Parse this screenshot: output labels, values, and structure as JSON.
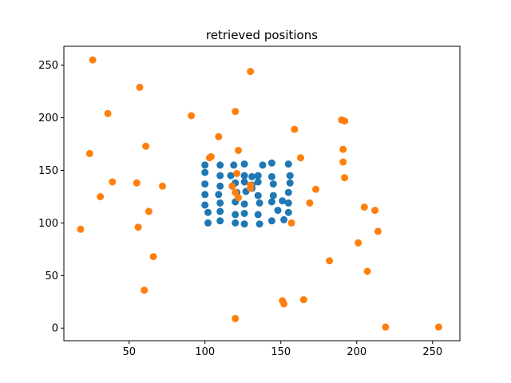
{
  "chart_data": {
    "type": "scatter",
    "title": "retrieved positions",
    "xlabel": "",
    "ylabel": "",
    "xlim": [
      7,
      268
    ],
    "ylim": [
      -12,
      268
    ],
    "xticks": [
      50,
      100,
      150,
      200,
      250
    ],
    "yticks": [
      0,
      50,
      100,
      150,
      200,
      250
    ],
    "grid": false,
    "legend": "none",
    "series": [
      {
        "color": "#1f77b4",
        "points": [
          [
            100,
            155
          ],
          [
            100,
            148
          ],
          [
            100,
            137
          ],
          [
            100,
            127
          ],
          [
            100,
            117
          ],
          [
            102,
            110
          ],
          [
            102,
            100
          ],
          [
            110,
            155
          ],
          [
            110,
            145
          ],
          [
            110,
            135
          ],
          [
            109,
            127
          ],
          [
            110,
            119
          ],
          [
            110,
            111
          ],
          [
            110,
            102
          ],
          [
            117,
            145
          ],
          [
            119,
            155
          ],
          [
            118,
            135
          ],
          [
            121,
            129
          ],
          [
            120,
            138
          ],
          [
            120,
            120
          ],
          [
            120,
            108
          ],
          [
            120,
            100
          ],
          [
            126,
            156
          ],
          [
            126,
            145
          ],
          [
            126,
            139
          ],
          [
            127,
            130
          ],
          [
            126,
            118
          ],
          [
            126,
            109
          ],
          [
            126,
            99
          ],
          [
            131,
            144
          ],
          [
            131,
            136
          ],
          [
            131,
            133
          ],
          [
            135,
            145
          ],
          [
            135,
            139
          ],
          [
            135,
            126
          ],
          [
            136,
            119
          ],
          [
            135,
            108
          ],
          [
            136,
            99
          ],
          [
            138,
            155
          ],
          [
            144,
            157
          ],
          [
            144,
            144
          ],
          [
            145,
            137
          ],
          [
            145,
            126
          ],
          [
            144,
            120
          ],
          [
            144,
            102
          ],
          [
            148,
            112
          ],
          [
            151,
            121
          ],
          [
            152,
            103
          ],
          [
            155,
            156
          ],
          [
            156,
            145
          ],
          [
            156,
            138
          ],
          [
            155,
            129
          ],
          [
            155,
            119
          ],
          [
            155,
            110
          ]
        ]
      },
      {
        "color": "#ff7f0e",
        "points": [
          [
            26,
            255
          ],
          [
            130,
            244
          ],
          [
            57,
            229
          ],
          [
            36,
            204
          ],
          [
            91,
            202
          ],
          [
            120,
            206
          ],
          [
            109,
            182
          ],
          [
            159,
            189
          ],
          [
            190,
            198
          ],
          [
            192,
            197
          ],
          [
            61,
            173
          ],
          [
            24,
            166
          ],
          [
            122,
            169
          ],
          [
            191,
            170
          ],
          [
            103,
            162
          ],
          [
            104,
            163
          ],
          [
            163,
            162
          ],
          [
            191,
            158
          ],
          [
            121,
            147
          ],
          [
            192,
            143
          ],
          [
            39,
            139
          ],
          [
            55,
            138
          ],
          [
            72,
            135
          ],
          [
            118,
            135
          ],
          [
            130,
            136
          ],
          [
            130,
            133
          ],
          [
            173,
            132
          ],
          [
            120,
            129
          ],
          [
            122,
            124
          ],
          [
            31,
            125
          ],
          [
            169,
            119
          ],
          [
            205,
            115
          ],
          [
            212,
            112
          ],
          [
            63,
            111
          ],
          [
            157,
            100
          ],
          [
            18,
            94
          ],
          [
            56,
            96
          ],
          [
            214,
            92
          ],
          [
            201,
            81
          ],
          [
            66,
            68
          ],
          [
            182,
            64
          ],
          [
            207,
            54
          ],
          [
            60,
            36
          ],
          [
            151,
            26
          ],
          [
            165,
            27
          ],
          [
            152,
            23
          ],
          [
            120,
            9
          ],
          [
            219,
            1
          ],
          [
            254,
            1
          ]
        ]
      }
    ]
  }
}
